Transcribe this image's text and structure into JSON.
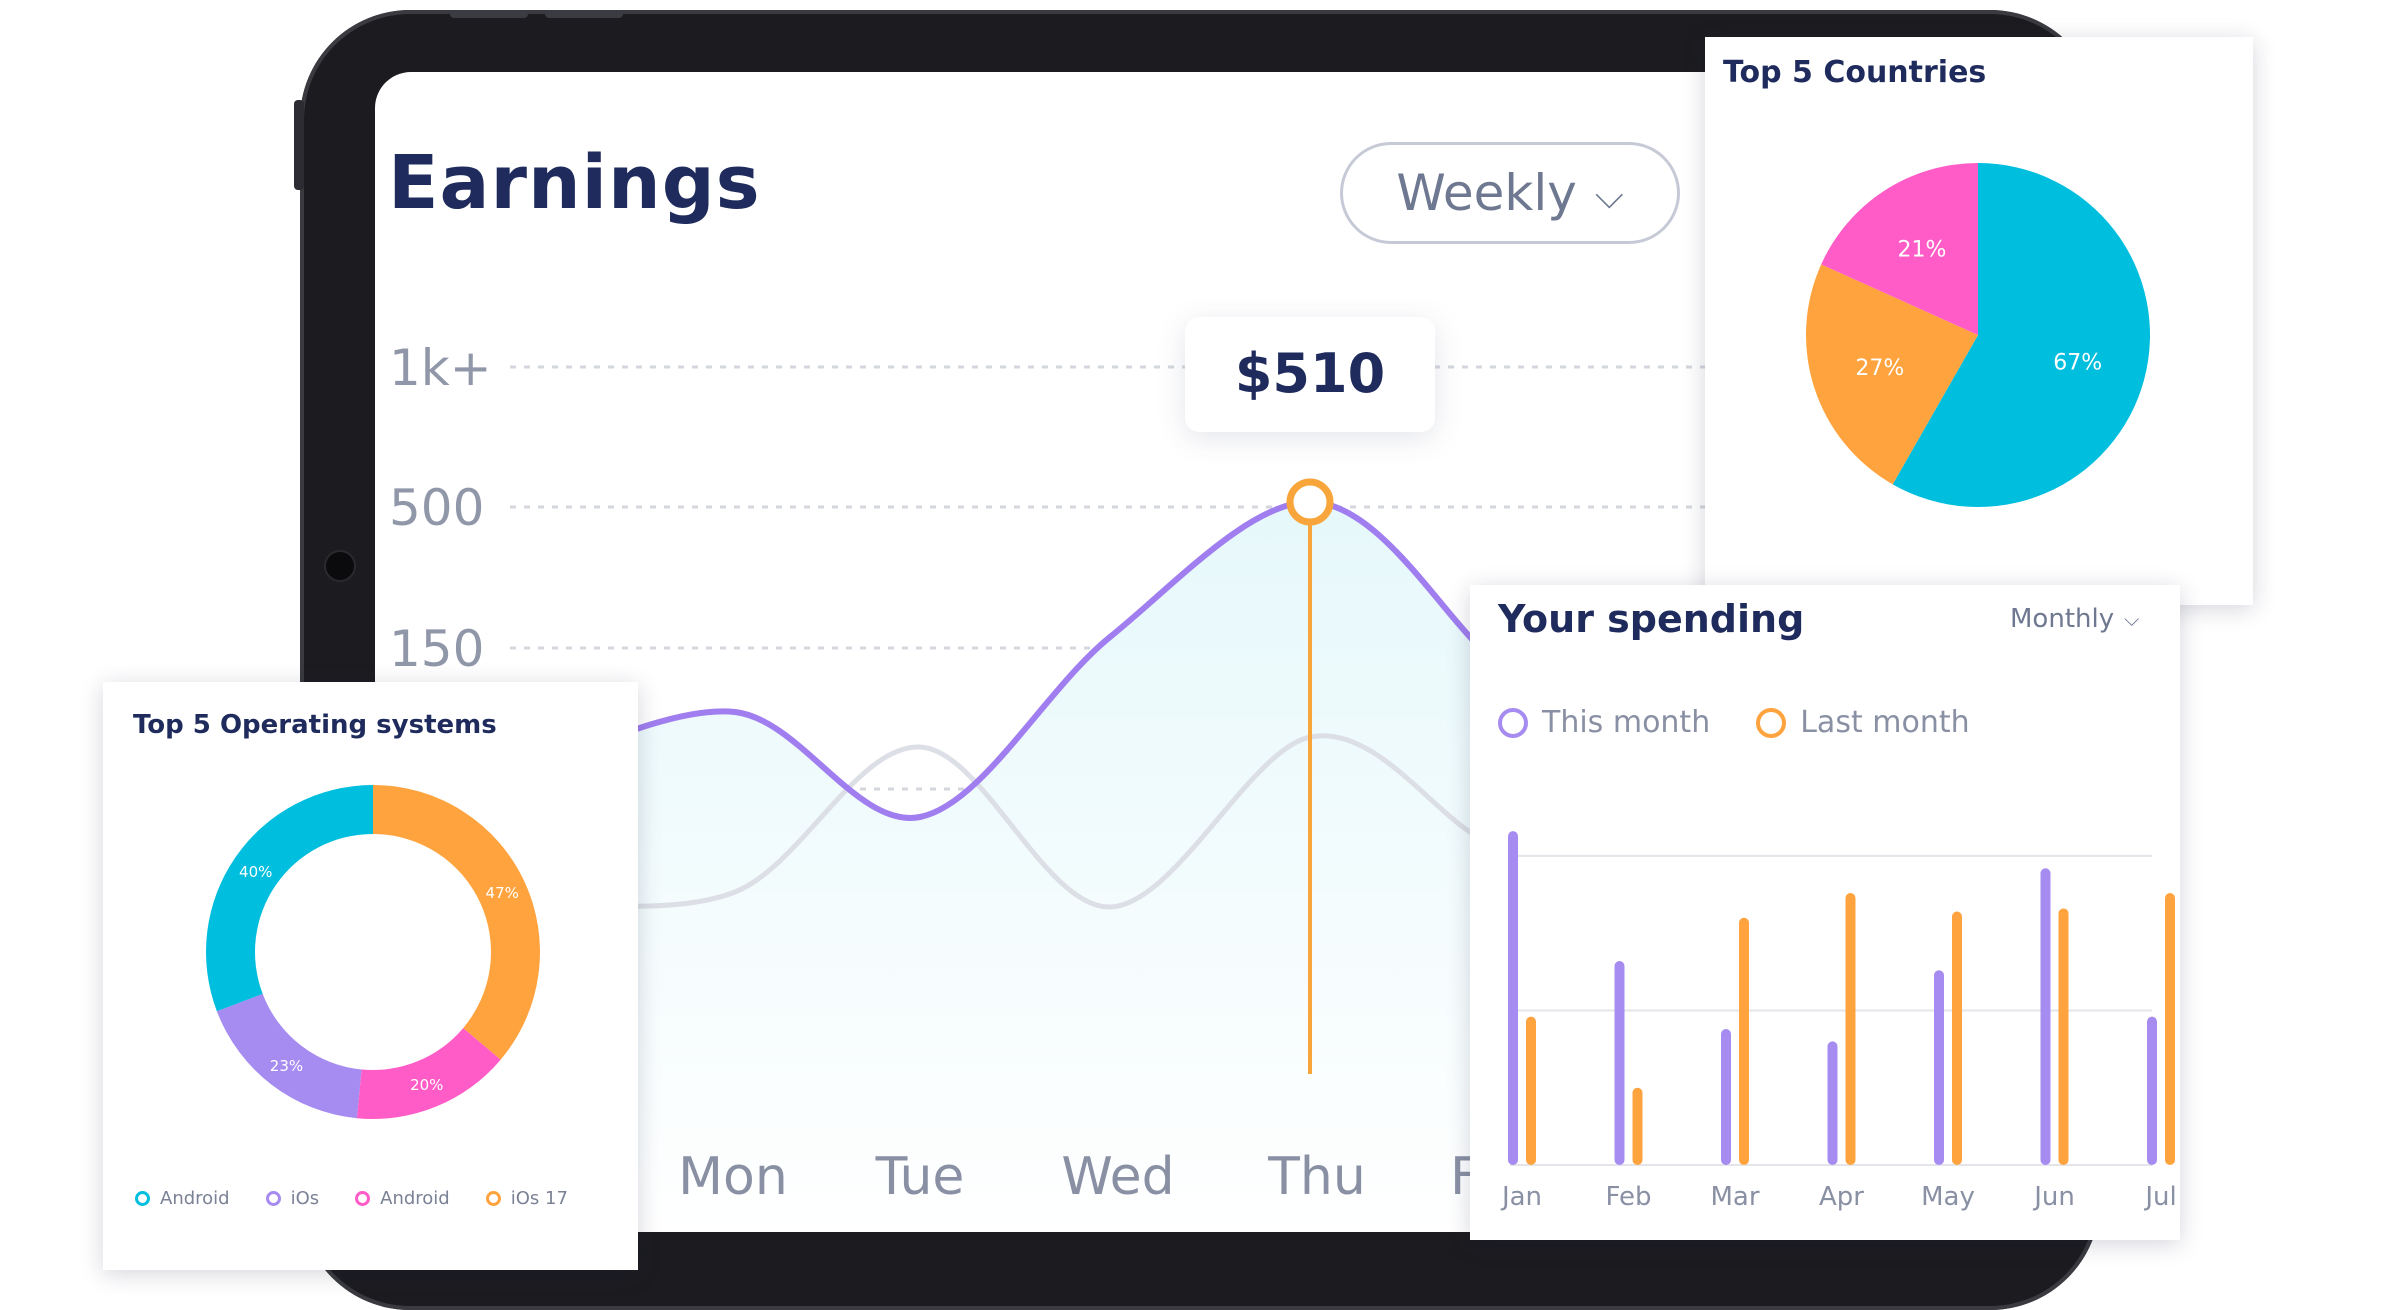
{
  "earnings": {
    "title": "Earnings",
    "period_selector": "Weekly",
    "tooltip_value": "$510",
    "colors": {
      "this_week": "#a07ef0",
      "last_week": "#dcdfe5",
      "marker": "#f8a63c"
    }
  },
  "countries": {
    "title": "Top 5 Countries",
    "colors": [
      "#00bede",
      "#ffa33e",
      "#ff5cc8"
    ]
  },
  "os": {
    "title": "Top 5 Operating systems",
    "legend": [
      {
        "label": "Android",
        "color": "#00bede"
      },
      {
        "label": "iOs",
        "color": "#a68bf0"
      },
      {
        "label": "Android",
        "color": "#ff5cc8"
      },
      {
        "label": "iOs 17",
        "color": "#ffa33e"
      }
    ]
  },
  "spending": {
    "title": "Your spending",
    "period_selector": "Monthly",
    "legend": [
      {
        "label": "This month",
        "color": "#a68bf0"
      },
      {
        "label": "Last month",
        "color": "#ffa33e"
      }
    ]
  },
  "chart_data": [
    {
      "type": "line",
      "title": "Earnings",
      "y_tick_labels": [
        "1k+",
        "500",
        "150"
      ],
      "x_tick_labels": [
        "Mon",
        "Tue",
        "Wed",
        "Thu",
        "F"
      ],
      "highlight": {
        "x": "Thu",
        "label": "$510"
      }
    },
    {
      "type": "pie",
      "title": "Top 5 Countries",
      "labels": [
        "67%",
        "27%",
        "21%"
      ],
      "values": [
        67,
        27,
        21
      ]
    },
    {
      "type": "pie",
      "title": "Top 5 Operating systems",
      "donut": true,
      "labels": [
        "47%",
        "20%",
        "23%",
        "40%"
      ],
      "values": [
        47,
        20,
        23,
        40
      ]
    },
    {
      "type": "bar",
      "title": "Your spending",
      "categories": [
        "Jan",
        "Feb",
        "Mar",
        "Apr",
        "May",
        "Jun",
        "Jul"
      ],
      "series": [
        {
          "name": "This month",
          "values": [
            108,
            66,
            44,
            40,
            63,
            96,
            48
          ]
        },
        {
          "name": "Last month",
          "values": [
            48,
            25,
            80,
            88,
            82,
            83,
            88
          ]
        }
      ],
      "ylim": [
        0,
        110
      ],
      "grid": true
    }
  ]
}
